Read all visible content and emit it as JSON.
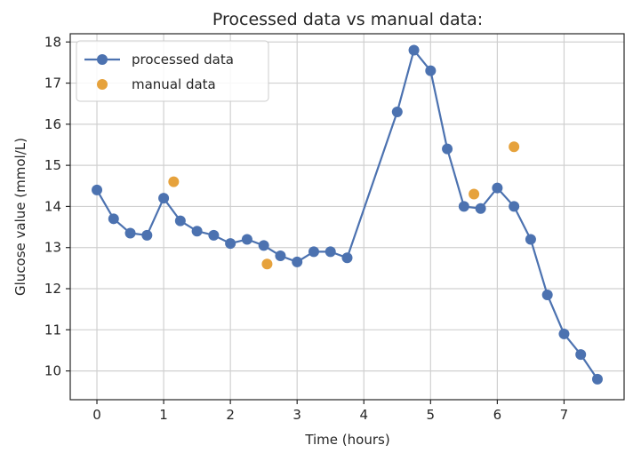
{
  "chart_data": {
    "type": "line",
    "title": "Processed data vs manual data:",
    "xlabel": "Time (hours)",
    "ylabel": "Glucose value (mmol/L)",
    "xlim": [
      -0.4,
      7.9
    ],
    "ylim": [
      9.3,
      18.2
    ],
    "xticks": [
      0,
      1,
      2,
      3,
      4,
      5,
      6,
      7
    ],
    "yticks": [
      10,
      11,
      12,
      13,
      14,
      15,
      16,
      17,
      18
    ],
    "grid": true,
    "legend_position": "top-left",
    "series": [
      {
        "name": "processed data",
        "style": "line-with-markers",
        "color": "#4c72b0",
        "x": [
          0,
          0.25,
          0.5,
          0.75,
          1.0,
          1.25,
          1.5,
          1.75,
          2.0,
          2.25,
          2.5,
          2.75,
          3.0,
          3.25,
          3.5,
          3.75,
          4.5,
          4.75,
          5.0,
          5.25,
          5.5,
          5.75,
          6.0,
          6.25,
          6.5,
          6.75,
          7.0,
          7.25,
          7.5
        ],
        "y": [
          14.4,
          13.7,
          13.35,
          13.3,
          14.2,
          13.65,
          13.4,
          13.3,
          13.1,
          13.2,
          13.05,
          12.8,
          12.65,
          12.9,
          12.9,
          12.75,
          16.3,
          17.8,
          17.3,
          15.4,
          14.0,
          13.95,
          14.45,
          14.0,
          13.2,
          11.85,
          10.9,
          10.4,
          9.8
        ]
      },
      {
        "name": "manual data",
        "style": "scatter",
        "color": "#e6a23c",
        "x": [
          1.15,
          2.55,
          5.65,
          6.25
        ],
        "y": [
          14.6,
          12.6,
          14.3,
          15.45
        ]
      }
    ]
  }
}
